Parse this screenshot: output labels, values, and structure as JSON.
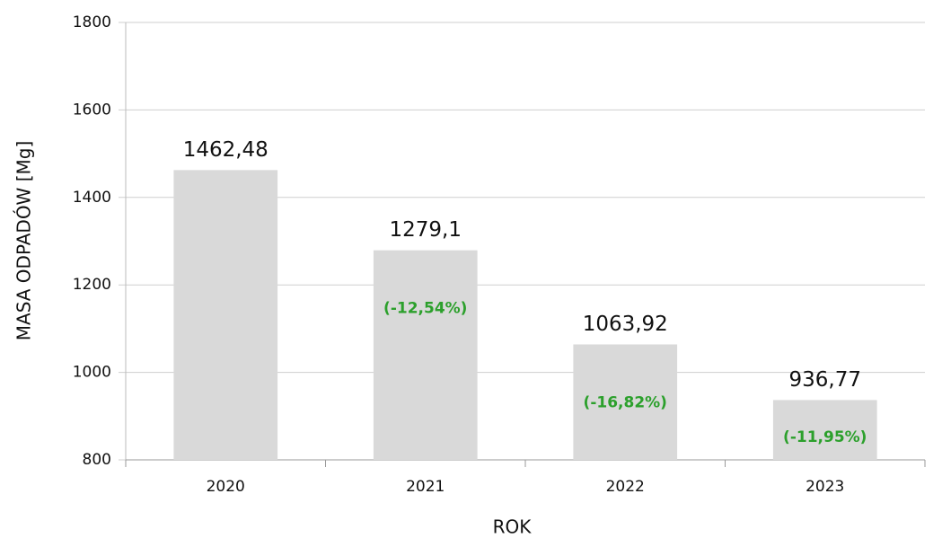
{
  "chart_data": {
    "type": "bar",
    "categories": [
      "2020",
      "2021",
      "2022",
      "2023"
    ],
    "values": [
      1462.48,
      1279.1,
      1063.92,
      936.77
    ],
    "value_labels": [
      "1462,48",
      "1279,1",
      "1063,92",
      "936,77"
    ],
    "change_labels": [
      null,
      "(-12,54%)",
      "(-16,82%)",
      "(-11,95%)"
    ],
    "color": "#d9d9d9",
    "x_label": "ROK",
    "y_label": "MASA ODPADÓW [Mg]",
    "ylim": [
      800,
      1800
    ],
    "yticks": [
      800,
      1000,
      1200,
      1400,
      1600,
      1800
    ],
    "grid": true
  }
}
